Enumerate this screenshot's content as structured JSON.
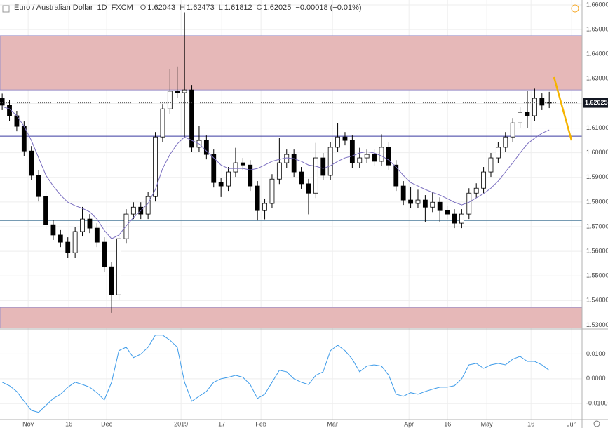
{
  "chart_data": {
    "type": "candlestick",
    "title": "Euro / Australian Dollar",
    "interval": "1D",
    "source": "FXCM",
    "ohlc_labels": [
      "O",
      "H",
      "L",
      "C"
    ],
    "change": "−0.00018 (−0.01%)",
    "up_color": "#ffffff",
    "down_color": "#000000",
    "wick_color": "#000000",
    "open": [
      1.622,
      1.6193,
      1.615,
      1.6107,
      1.6007,
      1.5908,
      1.5822,
      1.5708,
      1.5666,
      1.5637,
      1.5594,
      1.568,
      1.5731,
      1.5694,
      1.5637,
      1.5537,
      1.5423,
      1.5651,
      1.5751,
      1.5779,
      1.5751,
      1.5822,
      1.6064,
      1.6178,
      1.625,
      1.6244,
      1.6255,
      1.6022,
      1.605,
      1.5993,
      1.5879,
      1.5865,
      1.5922,
      1.5959,
      1.595,
      1.5865,
      1.5765,
      1.5794,
      1.5893,
      1.5959,
      1.5993,
      1.5922,
      1.5874,
      1.5836,
      1.5979,
      1.5908,
      1.6022,
      1.6064,
      1.605,
      1.5959,
      1.5979,
      1.5993,
      1.5965,
      1.6022,
      1.595,
      1.5865,
      1.5808,
      1.5794,
      1.5808,
      1.5779,
      1.5799,
      1.5765,
      1.5751,
      1.5714,
      1.5751,
      1.5836,
      1.5856,
      1.5922,
      1.5979,
      1.6022,
      1.6064,
      1.6121,
      1.6164,
      1.615,
      1.6221,
      1.62043
    ],
    "high": [
      1.624,
      1.6213,
      1.617,
      1.6127,
      1.6027,
      1.5928,
      1.5842,
      1.5728,
      1.5686,
      1.5657,
      1.57,
      1.578,
      1.5751,
      1.5714,
      1.5657,
      1.5557,
      1.5671,
      1.5771,
      1.5799,
      1.5799,
      1.5842,
      1.6084,
      1.6198,
      1.634,
      1.635,
      1.657,
      1.6275,
      1.611,
      1.607,
      1.6013,
      1.5899,
      1.5942,
      1.602,
      1.5979,
      1.597,
      1.5885,
      1.5814,
      1.5913,
      1.606,
      1.6013,
      1.6013,
      1.5942,
      1.5894,
      1.604,
      1.5999,
      1.6042,
      1.612,
      1.6084,
      1.607,
      1.602,
      1.6013,
      1.6013,
      1.6075,
      1.6042,
      1.597,
      1.5885,
      1.586,
      1.585,
      1.5828,
      1.584,
      1.5819,
      1.5785,
      1.5771,
      1.5771,
      1.5856,
      1.5876,
      1.5942,
      1.5999,
      1.6042,
      1.6084,
      1.6141,
      1.6184,
      1.625,
      1.626,
      1.6241,
      1.62473
    ],
    "low": [
      1.6173,
      1.613,
      1.6087,
      1.5987,
      1.5888,
      1.5802,
      1.5688,
      1.5646,
      1.5617,
      1.5574,
      1.5574,
      1.566,
      1.5674,
      1.5617,
      1.5517,
      1.535,
      1.5403,
      1.5631,
      1.5731,
      1.5731,
      1.5731,
      1.5802,
      1.6044,
      1.6158,
      1.6224,
      1.606,
      1.6002,
      1.6002,
      1.5973,
      1.5859,
      1.582,
      1.5845,
      1.5902,
      1.593,
      1.5845,
      1.5725,
      1.573,
      1.5774,
      1.5873,
      1.5939,
      1.5902,
      1.5854,
      1.575,
      1.5816,
      1.5888,
      1.5888,
      1.6002,
      1.603,
      1.5939,
      1.5939,
      1.5959,
      1.5945,
      1.5945,
      1.593,
      1.5845,
      1.5788,
      1.5774,
      1.5774,
      1.572,
      1.5759,
      1.572,
      1.5731,
      1.5694,
      1.5694,
      1.5731,
      1.5816,
      1.5836,
      1.5902,
      1.5959,
      1.6002,
      1.6044,
      1.6101,
      1.61,
      1.613,
      1.6173,
      1.61812
    ],
    "close": [
      1.6193,
      1.615,
      1.6107,
      1.6007,
      1.5908,
      1.5822,
      1.5708,
      1.5666,
      1.5637,
      1.5594,
      1.568,
      1.5731,
      1.5694,
      1.5637,
      1.5537,
      1.5423,
      1.5651,
      1.5751,
      1.5779,
      1.5751,
      1.5822,
      1.6064,
      1.6178,
      1.625,
      1.6244,
      1.6255,
      1.6022,
      1.605,
      1.5993,
      1.5879,
      1.5865,
      1.5922,
      1.5959,
      1.595,
      1.5865,
      1.5765,
      1.5794,
      1.5893,
      1.5959,
      1.5993,
      1.5922,
      1.5874,
      1.5836,
      1.5979,
      1.5908,
      1.6022,
      1.6064,
      1.605,
      1.5959,
      1.5979,
      1.5993,
      1.5965,
      1.6022,
      1.595,
      1.5865,
      1.5808,
      1.5794,
      1.5808,
      1.5779,
      1.5799,
      1.5765,
      1.5751,
      1.5714,
      1.5751,
      1.5836,
      1.5856,
      1.5922,
      1.5979,
      1.6022,
      1.6064,
      1.6121,
      1.6164,
      1.615,
      1.6221,
      1.6193,
      1.62025
    ],
    "ma_color": "#7b6fc0",
    "ma_values": [
      1.6187,
      1.6178,
      1.615,
      1.6107,
      1.605,
      1.5979,
      1.5908,
      1.5865,
      1.5828,
      1.5799,
      1.5785,
      1.5774,
      1.576,
      1.5731,
      1.5685,
      1.5651,
      1.5666,
      1.5703,
      1.5737,
      1.5765,
      1.5794,
      1.5851,
      1.5936,
      1.5993,
      1.6036,
      1.6064,
      1.605,
      1.6036,
      1.6007,
      1.5979,
      1.595,
      1.5936,
      1.5936,
      1.5936,
      1.593,
      1.5936,
      1.595,
      1.5965,
      1.5973,
      1.5979,
      1.5976,
      1.5965,
      1.595,
      1.5945,
      1.5936,
      1.5947,
      1.5965,
      1.5979,
      1.5987,
      1.5999,
      1.6004,
      1.5999,
      1.5987,
      1.597,
      1.5942,
      1.5908,
      1.5879,
      1.5865,
      1.5851,
      1.5839,
      1.5828,
      1.5814,
      1.5799,
      1.5788,
      1.5799,
      1.5817,
      1.5834,
      1.5856,
      1.5885,
      1.5922,
      1.5959,
      1.5999,
      1.6036,
      1.6059,
      1.6079,
      1.6093
    ],
    "zone_color": "#e6b8b8",
    "zones": [
      {
        "from": 1.6255,
        "to": 1.6475
      },
      {
        "from": 1.5287,
        "to": 1.5372
      }
    ],
    "hlines": [
      {
        "value": 1.6067,
        "color": "#3a3aa0"
      },
      {
        "value": 1.5725,
        "color": "#4a7a9a"
      }
    ],
    "last_price_color": "#131722",
    "xlim": [
      -0.3,
      79.5
    ],
    "xticks": [
      {
        "value": 3.56,
        "label": "Nov"
      },
      {
        "value": 9.13,
        "label": "16"
      },
      {
        "value": 14.33,
        "label": "Dec"
      },
      {
        "value": 24.52,
        "label": "2019"
      },
      {
        "value": 30.1,
        "label": "17"
      },
      {
        "value": 35.48,
        "label": "Feb"
      },
      {
        "value": 45.29,
        "label": "Mar"
      },
      {
        "value": 55.77,
        "label": "Apr"
      },
      {
        "value": 61.06,
        "label": "16"
      },
      {
        "value": 66.44,
        "label": "May"
      },
      {
        "value": 72.5,
        "label": "16"
      },
      {
        "value": 78.08,
        "label": "Jun"
      }
    ],
    "ylim": [
      1.5287,
      1.662
    ],
    "yticks": [
      {
        "value": 1.53,
        "label": "1.53000"
      },
      {
        "value": 1.54,
        "label": "1.54000"
      },
      {
        "value": 1.55,
        "label": "1.55000"
      },
      {
        "value": 1.56,
        "label": "1.56000"
      },
      {
        "value": 1.57,
        "label": "1.57000"
      },
      {
        "value": 1.58,
        "label": "1.58000"
      },
      {
        "value": 1.59,
        "label": "1.59000"
      },
      {
        "value": 1.6,
        "label": "1.60000"
      },
      {
        "value": 1.61,
        "label": "1.61000"
      },
      {
        "value": 1.62,
        "label": "1.62000"
      },
      {
        "value": 1.63,
        "label": "1.63000"
      },
      {
        "value": 1.64,
        "label": "1.64000"
      },
      {
        "value": 1.65,
        "label": "1.65000"
      },
      {
        "value": 1.66,
        "label": "1.66000"
      }
    ],
    "grid": true,
    "indicator": {
      "color": "#3d9be9",
      "values": [
        -0.0014,
        -0.0028,
        -0.0051,
        -0.009,
        -0.0127,
        -0.0135,
        -0.0107,
        -0.0079,
        -0.0062,
        -0.0034,
        -0.0014,
        -0.0023,
        -0.0034,
        -0.0056,
        -0.0085,
        -0.0014,
        0.0113,
        0.0127,
        0.0085,
        0.0099,
        0.0127,
        0.0175,
        0.0175,
        0.0155,
        0.0127,
        -0.0014,
        -0.009,
        -0.007,
        -0.0051,
        -0.0014,
        0.0,
        0.0006,
        0.0014,
        0.0006,
        -0.0023,
        -0.0079,
        -0.0062,
        -0.0014,
        0.0034,
        0.0028,
        0.0,
        -0.0014,
        -0.0023,
        0.0014,
        0.0028,
        0.0113,
        0.0135,
        0.0113,
        0.0079,
        0.0028,
        0.0051,
        0.0056,
        0.0051,
        0.0014,
        -0.0062,
        -0.007,
        -0.0056,
        -0.0062,
        -0.0051,
        -0.0042,
        -0.0034,
        -0.0034,
        -0.0028,
        0.0,
        0.0056,
        0.0062,
        0.0042,
        0.0056,
        0.0062,
        0.0056,
        0.0079,
        0.009,
        0.007,
        0.007,
        0.0056,
        0.0034
      ],
      "ylim": [
        -0.0164,
        0.0197
      ],
      "yticks": [
        {
          "value": -0.01,
          "label": "-0.0100"
        },
        {
          "value": 0,
          "label": "0.0000"
        },
        {
          "value": 0.01,
          "label": "0.0100"
        }
      ]
    }
  }
}
